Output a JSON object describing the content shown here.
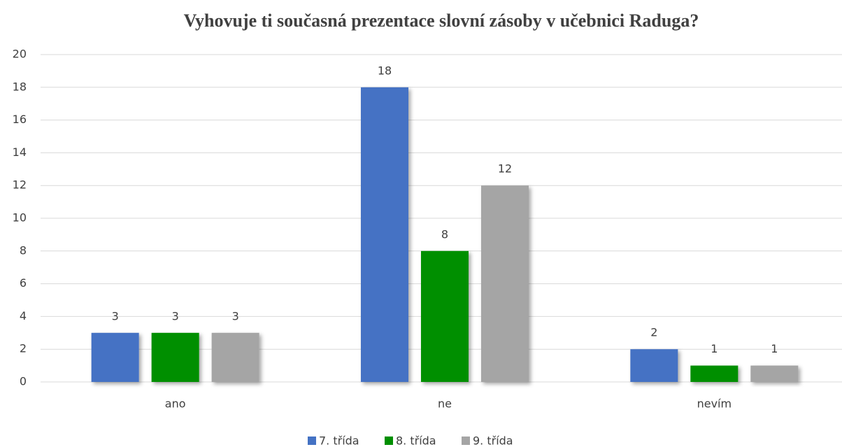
{
  "chart_data": {
    "type": "bar",
    "title": "Vyhovuje ti současná prezentace slovní zásoby v učebnici Raduga?",
    "categories": [
      "ano",
      "ne",
      "nevím"
    ],
    "series": [
      {
        "name": "7. třída",
        "color": "#4472c4",
        "values": [
          3,
          18,
          2
        ]
      },
      {
        "name": "8. třída",
        "color": "#008f00",
        "values": [
          3,
          8,
          1
        ]
      },
      {
        "name": "9. třída",
        "color": "#a5a5a5",
        "values": [
          3,
          12,
          1
        ]
      }
    ],
    "ylim": [
      0,
      20
    ],
    "yticks": [
      0,
      2,
      4,
      6,
      8,
      10,
      12,
      14,
      16,
      18,
      20
    ],
    "grid": true,
    "legend": "bottom"
  }
}
